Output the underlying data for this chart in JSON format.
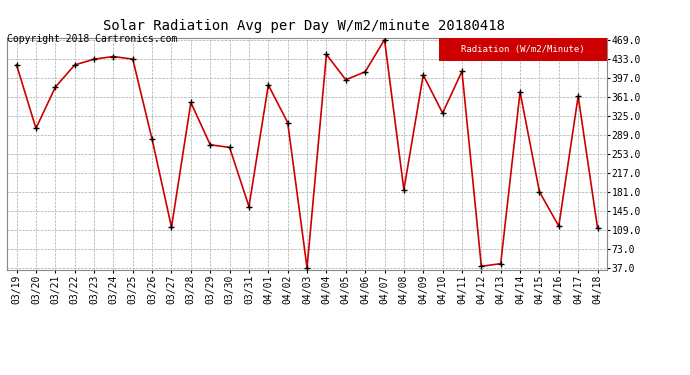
{
  "title": "Solar Radiation Avg per Day W/m2/minute 20180418",
  "copyright": "Copyright 2018 Cartronics.com",
  "legend_label": "Radiation (W/m2/Minute)",
  "x_labels": [
    "03/19",
    "03/20",
    "03/21",
    "03/22",
    "03/23",
    "03/24",
    "03/25",
    "03/26",
    "03/27",
    "03/28",
    "03/29",
    "03/30",
    "03/31",
    "04/01",
    "04/02",
    "04/03",
    "04/04",
    "04/05",
    "04/06",
    "04/07",
    "04/08",
    "04/09",
    "04/10",
    "04/11",
    "04/12",
    "04/13",
    "04/14",
    "04/15",
    "04/16",
    "04/17",
    "04/18"
  ],
  "values": [
    421,
    301,
    379,
    421,
    432,
    437,
    432,
    280,
    114,
    350,
    270,
    265,
    153,
    383,
    312,
    37,
    441,
    393,
    408,
    469,
    185,
    402,
    330,
    409,
    40,
    45,
    370,
    181,
    116,
    362,
    113
  ],
  "y_ticks": [
    37.0,
    73.0,
    109.0,
    145.0,
    181.0,
    217.0,
    253.0,
    289.0,
    325.0,
    361.0,
    397.0,
    433.0,
    469.0
  ],
  "line_color": "#cc0000",
  "marker_color": "#000000",
  "bg_color": "#ffffff",
  "plot_bg_color": "#ffffff",
  "grid_color": "#aaaaaa",
  "legend_bg": "#cc0000",
  "legend_text_color": "#ffffff",
  "title_fontsize": 10,
  "tick_fontsize": 7,
  "copyright_fontsize": 7
}
